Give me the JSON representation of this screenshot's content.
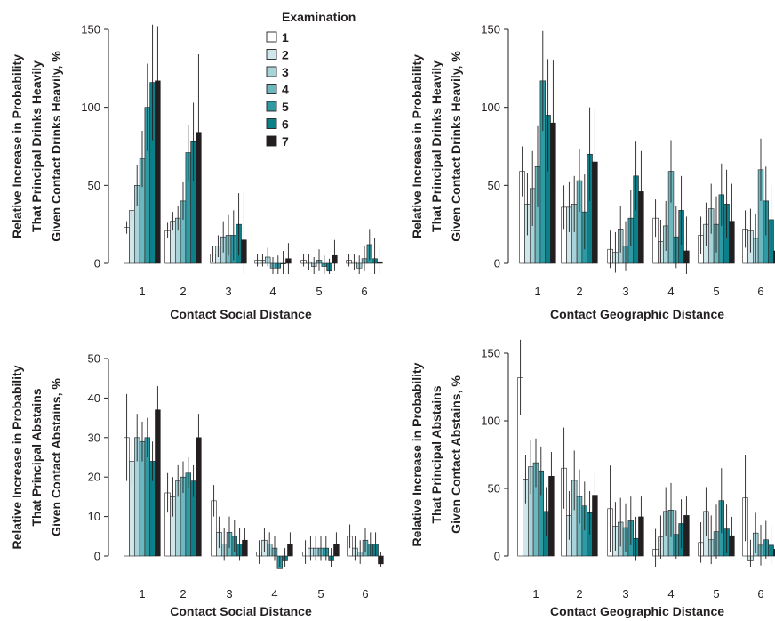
{
  "legend": {
    "title": "Examination",
    "items": [
      {
        "label": "1",
        "color": "#ffffff"
      },
      {
        "label": "2",
        "color": "#cfe7ea"
      },
      {
        "label": "3",
        "color": "#a8d3d8"
      },
      {
        "label": "4",
        "color": "#6db8bf"
      },
      {
        "label": "5",
        "color": "#2e9aa3"
      },
      {
        "label": "6",
        "color": "#0c7f88"
      },
      {
        "label": "7",
        "color": "#231f20"
      }
    ]
  },
  "chart_data": [
    {
      "type": "bar",
      "ylabel": [
        "Relative Increase in Probability",
        "That Principal Drinks Heavily",
        "Given Contact Drinks Heavily, %"
      ],
      "xlabel": "Contact Social Distance",
      "categories": [
        "1",
        "2",
        "3",
        "4",
        "5",
        "6"
      ],
      "ylim": [
        0,
        150
      ],
      "yticks": [
        "0",
        "50",
        "100",
        "150"
      ],
      "series": [
        {
          "name": "1",
          "values": [
            23,
            21,
            6,
            2,
            2,
            2
          ]
        },
        {
          "name": "2",
          "values": [
            34,
            27,
            11,
            2,
            1,
            1
          ]
        },
        {
          "name": "3",
          "values": [
            50,
            29,
            17,
            4,
            -2,
            -3
          ]
        },
        {
          "name": "4",
          "values": [
            67,
            40,
            18,
            -3,
            2,
            3
          ]
        },
        {
          "name": "5",
          "values": [
            100,
            71,
            18,
            -3,
            -2,
            12
          ]
        },
        {
          "name": "6",
          "values": [
            116,
            78,
            25,
            0,
            -5,
            3
          ]
        },
        {
          "name": "7",
          "values": [
            117,
            84,
            15,
            3,
            5,
            1
          ]
        }
      ],
      "errors": [
        [
          4,
          5,
          5,
          4,
          4,
          4
        ],
        [
          6,
          6,
          7,
          4,
          5,
          5
        ],
        [
          13,
          8,
          10,
          6,
          6,
          8
        ],
        [
          18,
          12,
          13,
          7,
          7,
          8
        ],
        [
          28,
          18,
          16,
          8,
          7,
          10
        ],
        [
          37,
          25,
          20,
          8,
          8,
          13
        ],
        [
          35,
          50,
          30,
          10,
          10,
          11
        ]
      ]
    },
    {
      "type": "bar",
      "ylabel": [
        "Relative Increase in Probability",
        "That Principal Drinks Heavily",
        "Given Contact Drinks Heavily, %"
      ],
      "xlabel": "Contact Geographic Distance",
      "categories": [
        "1",
        "2",
        "3",
        "4",
        "5",
        "6"
      ],
      "ylim": [
        0,
        150
      ],
      "yticks": [
        "0",
        "50",
        "100",
        "150"
      ],
      "series": [
        {
          "name": "1",
          "values": [
            59,
            36,
            9,
            29,
            18,
            22
          ]
        },
        {
          "name": "2",
          "values": [
            38,
            36,
            7,
            14,
            25,
            21
          ]
        },
        {
          "name": "3",
          "values": [
            48,
            38,
            22,
            24,
            35,
            16
          ]
        },
        {
          "name": "4",
          "values": [
            62,
            53,
            11,
            59,
            25,
            60
          ]
        },
        {
          "name": "5",
          "values": [
            117,
            33,
            29,
            17,
            44,
            40
          ]
        },
        {
          "name": "6",
          "values": [
            95,
            70,
            56,
            34,
            38,
            28
          ]
        },
        {
          "name": "7",
          "values": [
            90,
            65,
            46,
            8,
            27,
            8
          ]
        }
      ],
      "errors": [
        [
          16,
          14,
          12,
          12,
          12,
          12
        ],
        [
          20,
          16,
          13,
          14,
          14,
          14
        ],
        [
          24,
          18,
          15,
          16,
          16,
          16
        ],
        [
          26,
          20,
          16,
          20,
          18,
          20
        ],
        [
          32,
          24,
          18,
          20,
          20,
          22
        ],
        [
          36,
          30,
          22,
          22,
          22,
          22
        ],
        [
          40,
          34,
          26,
          22,
          24,
          22
        ]
      ]
    },
    {
      "type": "bar",
      "ylabel": [
        "Relative Increase in Probability",
        "That Principal Abstains",
        "Given Contact Abstains, %"
      ],
      "xlabel": "Contact Social Distance",
      "categories": [
        "1",
        "2",
        "3",
        "4",
        "5",
        "6"
      ],
      "ylim": [
        0,
        50
      ],
      "yticks": [
        "0",
        "10",
        "20",
        "30",
        "40",
        "50"
      ],
      "series": [
        {
          "name": "1",
          "values": [
            30,
            16,
            14,
            1,
            1,
            5
          ]
        },
        {
          "name": "2",
          "values": [
            24,
            15,
            6,
            4,
            2,
            2
          ]
        },
        {
          "name": "3",
          "values": [
            30,
            19,
            3,
            3,
            2,
            1
          ]
        },
        {
          "name": "4",
          "values": [
            29,
            20,
            6,
            2,
            2,
            4
          ]
        },
        {
          "name": "5",
          "values": [
            30,
            21,
            5,
            -3,
            2,
            3
          ]
        },
        {
          "name": "6",
          "values": [
            24,
            19,
            3,
            -1,
            -1,
            3
          ]
        },
        {
          "name": "7",
          "values": [
            37,
            30,
            4,
            3,
            3,
            -2
          ]
        }
      ],
      "errors": [
        [
          11,
          5,
          4,
          3,
          3,
          3
        ],
        [
          6,
          5,
          4,
          3,
          3,
          3
        ],
        [
          6,
          4,
          4,
          3,
          3,
          3
        ],
        [
          5,
          4,
          4,
          3,
          3,
          3
        ],
        [
          5,
          4,
          4,
          3,
          3,
          3
        ],
        [
          5,
          4,
          4,
          3,
          3,
          3
        ],
        [
          6,
          6,
          3,
          3,
          3,
          3
        ]
      ]
    },
    {
      "type": "bar",
      "ylabel": [
        "Relative Increase in Probability",
        "That Principal Abstains",
        "Given Contact Abstains, %"
      ],
      "xlabel": "Contact Geographic Distance",
      "categories": [
        "1",
        "2",
        "3",
        "4",
        "5",
        "6"
      ],
      "ylim": [
        0,
        150
      ],
      "yticks": [
        "0",
        "50",
        "100",
        "150"
      ],
      "series": [
        {
          "name": "1",
          "values": [
            132,
            65,
            35,
            5,
            10,
            43
          ]
        },
        {
          "name": "2",
          "values": [
            57,
            30,
            22,
            14,
            33,
            -3
          ]
        },
        {
          "name": "3",
          "values": [
            66,
            56,
            25,
            33,
            12,
            17
          ]
        },
        {
          "name": "4",
          "values": [
            69,
            44,
            21,
            34,
            18,
            8
          ]
        },
        {
          "name": "5",
          "values": [
            63,
            37,
            26,
            16,
            41,
            12
          ]
        },
        {
          "name": "6",
          "values": [
            33,
            32,
            13,
            24,
            20,
            8
          ]
        },
        {
          "name": "7",
          "values": [
            59,
            45,
            29,
            30,
            15,
            5
          ]
        }
      ],
      "errors": [
        [
          28,
          30,
          32,
          15,
          15,
          32
        ],
        [
          18,
          18,
          18,
          16,
          18,
          15
        ],
        [
          20,
          22,
          18,
          18,
          18,
          15
        ],
        [
          18,
          20,
          18,
          20,
          20,
          15
        ],
        [
          18,
          18,
          18,
          18,
          24,
          14
        ],
        [
          18,
          16,
          16,
          18,
          18,
          14
        ],
        [
          18,
          16,
          15,
          14,
          14,
          12
        ]
      ]
    }
  ]
}
